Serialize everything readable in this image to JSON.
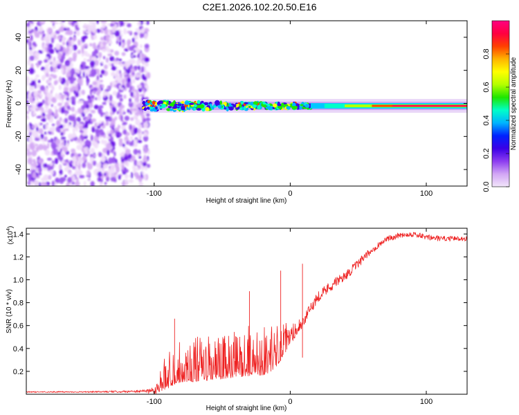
{
  "title": "C2E1.2026.102.20.50.E16",
  "chart_data": [
    {
      "type": "heatmap",
      "title": "C2E1.2026.102.20.50.E16",
      "xlabel": "Height of straight line (km)",
      "ylabel": "Frequency (Hz)",
      "xlim": [
        -194,
        130
      ],
      "ylim": [
        -50,
        50
      ],
      "xticks": [
        "-100",
        "0",
        "100"
      ],
      "xtick_values": [
        -100,
        0,
        100
      ],
      "yticks": [
        "40",
        "20",
        "0",
        "-20",
        "-40"
      ],
      "ytick_values": [
        40,
        20,
        0,
        -20,
        -40
      ],
      "colorbar": {
        "label": "Normalized spectral amplitude",
        "range": [
          0,
          1
        ],
        "ticks": [
          "0.0",
          "0.2",
          "0.4",
          "0.6",
          "0.8"
        ],
        "tick_values": [
          0.0,
          0.2,
          0.4,
          0.6,
          0.8
        ],
        "colors": [
          "#f2e6fa",
          "#d2a6f5",
          "#8c3cf0",
          "#3a00e6",
          "#0022ff",
          "#00b4ff",
          "#00ffc8",
          "#1ee600",
          "#b4ff00",
          "#ffff00",
          "#ffb400",
          "#ff4000",
          "#ff0040",
          "#ff0080"
        ]
      },
      "signal_line": {
        "frequency_hz": -1.5,
        "x_start": -108,
        "x_end": 130
      }
    },
    {
      "type": "line",
      "xlabel": "Height of straight line (km)",
      "ylabel": "SNR (10 * v/v)",
      "scale_label": "(x10",
      "scale_exponent": "4",
      "series": [
        {
          "name": "SNR",
          "color": "#ee2222",
          "x": [
            -194,
            -150,
            -110,
            -100,
            -95,
            -90,
            -85,
            -80,
            -70,
            -60,
            -50,
            -40,
            -30,
            -20,
            -15,
            -10,
            -5,
            0,
            5,
            10,
            15,
            20,
            30,
            40,
            50,
            60,
            70,
            80,
            90,
            100,
            110,
            120,
            130
          ],
          "y": [
            200,
            200,
            250,
            350,
            700,
            1300,
            1700,
            1900,
            2000,
            2100,
            2200,
            2400,
            2600,
            2700,
            2900,
            3300,
            4000,
            4800,
            5600,
            6400,
            7500,
            8500,
            9500,
            10300,
            11400,
            12600,
            13500,
            13900,
            14000,
            13700,
            13600,
            13600,
            13600
          ],
          "noise": [
            50,
            50,
            100,
            300,
            1000,
            1600,
            1700,
            1700,
            1800,
            1800,
            1800,
            1900,
            2000,
            2100,
            2000,
            1700,
            1300,
            900,
            700,
            500,
            500,
            500,
            500,
            400,
            400,
            300,
            250,
            250,
            250,
            250,
            250,
            200,
            200
          ]
        }
      ],
      "xlim": [
        -194,
        130
      ],
      "ylim": [
        0,
        14500
      ],
      "xticks": [
        "-100",
        "0",
        "100"
      ],
      "xtick_values": [
        -100,
        0,
        100
      ],
      "yticks": [
        "0.2",
        "0.4",
        "0.6",
        "0.8",
        "1.0",
        "1.2",
        "1.4"
      ],
      "ytick_values": [
        2000,
        4000,
        6000,
        8000,
        10000,
        12000,
        14000
      ],
      "annotations": [
        {
          "x": -85,
          "y": 6600
        },
        {
          "x": -30,
          "y": 9000
        },
        {
          "x": -7,
          "y": 10800
        },
        {
          "x": 9,
          "y": 11400
        },
        {
          "x": 9,
          "y": 3200
        }
      ]
    }
  ]
}
